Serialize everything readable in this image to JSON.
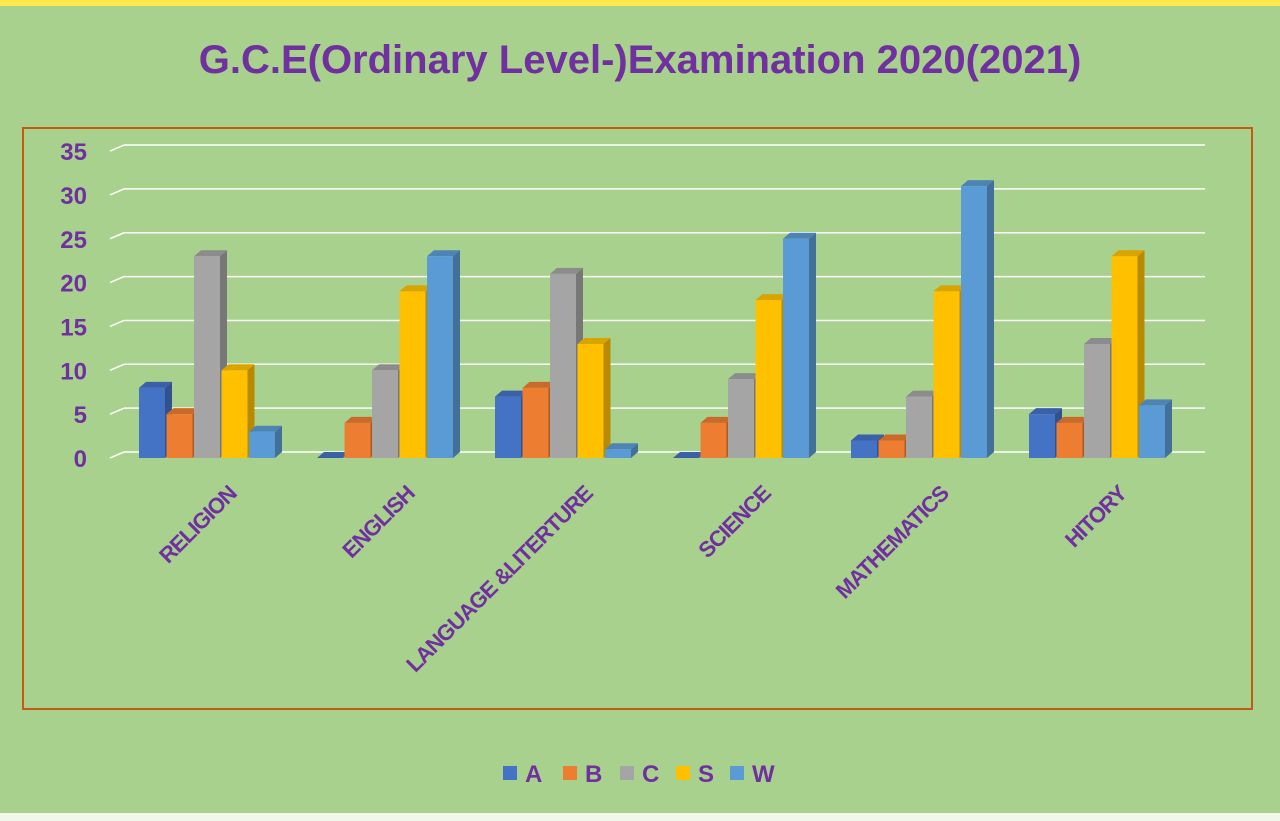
{
  "chart_data": {
    "type": "bar",
    "title": "G.C.E(Ordinary Level-)Examination 2020(2021)",
    "categories": [
      "RELIGION",
      "ENGLISH",
      "LANGUAGE &LITERTURE",
      "SCIENCE",
      "MATHEMATICS",
      "HITORY"
    ],
    "series": [
      {
        "name": "A",
        "values": [
          8,
          0,
          7,
          0,
          2,
          5
        ]
      },
      {
        "name": "B",
        "values": [
          5,
          4,
          8,
          4,
          2,
          4
        ]
      },
      {
        "name": "C",
        "values": [
          23,
          10,
          21,
          9,
          7,
          13
        ]
      },
      {
        "name": "S",
        "values": [
          10,
          19,
          13,
          18,
          19,
          23
        ]
      },
      {
        "name": "W",
        "values": [
          3,
          23,
          1,
          25,
          31,
          6
        ]
      }
    ],
    "ylim": [
      0,
      35
    ],
    "yticks": [
      "0",
      "5",
      "10",
      "15",
      "20",
      "25",
      "30",
      "35"
    ],
    "grid": true,
    "legend_position": "bottom",
    "colors": {
      "A": "#4472c4",
      "B": "#ed7d31",
      "C": "#a5a5a5",
      "S": "#ffc000",
      "W": "#5b9bd5",
      "text": "#7030a0",
      "frame": "#c55a11",
      "grid": "#ffffff"
    }
  }
}
